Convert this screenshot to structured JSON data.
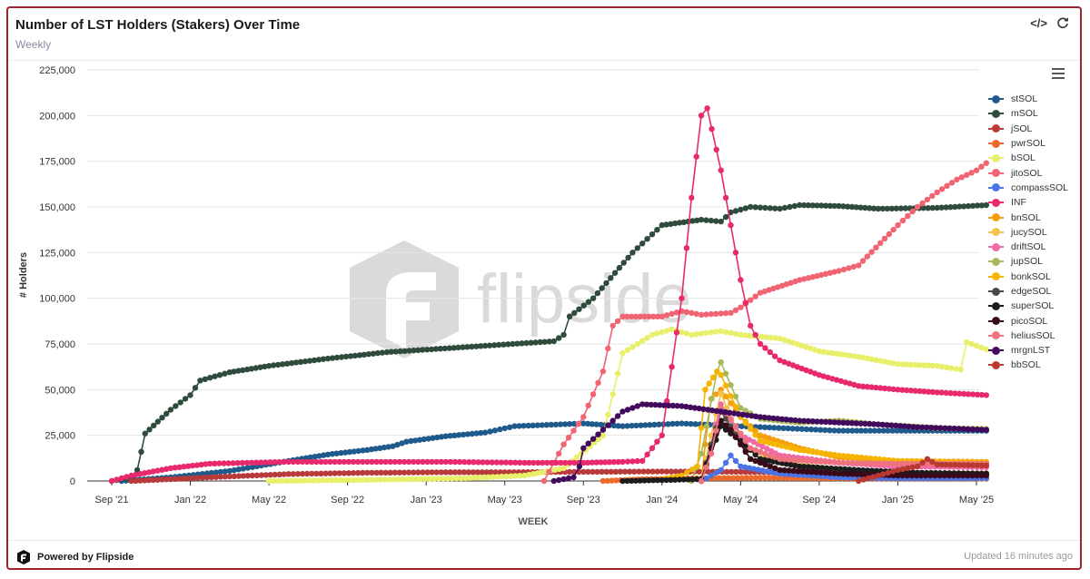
{
  "header": {
    "title": "Number of LST Holders (Stakers) Over Time",
    "subtitle": "Weekly",
    "embed_icon": "</>",
    "refresh_icon": "refresh-icon"
  },
  "footer": {
    "powered_by": "Powered by Flipside",
    "updated": "Updated 16 minutes ago"
  },
  "watermark_text": "flipside",
  "chart_data": {
    "type": "line",
    "xlabel": "WEEK",
    "ylabel": "# Holders",
    "ylim": [
      0,
      225000
    ],
    "x_ticks": [
      "Sep '21",
      "Jan '22",
      "May '22",
      "Sep '22",
      "Jan '23",
      "May '23",
      "Sep '23",
      "Jan '24",
      "May '24",
      "Sep '24",
      "Jan '25",
      "May '25"
    ],
    "y_ticks": [
      "0",
      "25,000",
      "50,000",
      "75,000",
      "100,000",
      "125,000",
      "150,000",
      "175,000",
      "200,000",
      "225,000"
    ],
    "grid": "horizontal",
    "legend_position": "right",
    "series": [
      {
        "name": "stSOL",
        "color": "#1f5a8c",
        "points": [
          [
            0.5,
            0
          ],
          [
            3,
            2000
          ],
          [
            6,
            5500
          ],
          [
            9,
            11000
          ],
          [
            11,
            14500
          ],
          [
            13,
            17000
          ],
          [
            14.3,
            19000
          ],
          [
            15,
            21500
          ],
          [
            17,
            24500
          ],
          [
            19,
            26500
          ],
          [
            20.5,
            30000
          ],
          [
            24,
            31500
          ],
          [
            26,
            30000
          ],
          [
            29,
            31500
          ],
          [
            33,
            29500
          ],
          [
            37,
            27500
          ],
          [
            42,
            27500
          ],
          [
            44.5,
            27500
          ]
        ]
      },
      {
        "name": "mSOL",
        "color": "#2f4b3c",
        "points": [
          [
            0,
            0
          ],
          [
            1,
            2000
          ],
          [
            1.3,
            6000
          ],
          [
            1.7,
            26000
          ],
          [
            3,
            39000
          ],
          [
            4,
            47000
          ],
          [
            4.5,
            55000
          ],
          [
            6,
            59500
          ],
          [
            8,
            63000
          ],
          [
            11,
            67000
          ],
          [
            14,
            70500
          ],
          [
            19,
            74000
          ],
          [
            22.5,
            76500
          ],
          [
            23,
            80000
          ],
          [
            23.3,
            90000
          ],
          [
            24.5,
            100000
          ],
          [
            26.5,
            125000
          ],
          [
            28,
            140000
          ],
          [
            30,
            143000
          ],
          [
            31,
            142000
          ],
          [
            31.5,
            147000
          ],
          [
            32.5,
            150000
          ],
          [
            34,
            149000
          ],
          [
            35,
            151000
          ],
          [
            37,
            150500
          ],
          [
            39,
            149000
          ],
          [
            42,
            149500
          ],
          [
            44.5,
            151000
          ]
        ]
      },
      {
        "name": "jSOL",
        "color": "#b83a3a",
        "points": [
          [
            1,
            0
          ],
          [
            3,
            1000
          ],
          [
            6,
            2500
          ],
          [
            9,
            3800
          ],
          [
            13,
            4500
          ],
          [
            17,
            4800
          ],
          [
            20,
            4800
          ],
          [
            24,
            5000
          ],
          [
            28,
            5200
          ],
          [
            32,
            5000
          ],
          [
            36,
            4600
          ],
          [
            40,
            4400
          ],
          [
            44.5,
            4200
          ]
        ]
      },
      {
        "name": "pwrSOL",
        "color": "#ee6a2b",
        "points": [
          [
            25,
            0
          ],
          [
            27,
            1000
          ],
          [
            30,
            1500
          ],
          [
            33,
            1800
          ],
          [
            36,
            1500
          ],
          [
            40,
            1300
          ],
          [
            44.5,
            1200
          ]
        ]
      },
      {
        "name": "bSOL",
        "color": "#e8ef6a",
        "points": [
          [
            8,
            0
          ],
          [
            13,
            600
          ],
          [
            18,
            1500
          ],
          [
            21,
            3000
          ],
          [
            23,
            7000
          ],
          [
            25,
            25000
          ],
          [
            26,
            70000
          ],
          [
            27.5,
            80000
          ],
          [
            28.5,
            83000
          ],
          [
            29.5,
            80000
          ],
          [
            31,
            82000
          ],
          [
            32,
            80000
          ],
          [
            34,
            78000
          ],
          [
            36,
            71000
          ],
          [
            38,
            68000
          ],
          [
            40,
            64000
          ],
          [
            42,
            63000
          ],
          [
            43.2,
            61000
          ],
          [
            43.5,
            76000
          ],
          [
            44.5,
            72000
          ]
        ]
      },
      {
        "name": "jitoSOL",
        "color": "#f06473",
        "points": [
          [
            22,
            0
          ],
          [
            23,
            20000
          ],
          [
            24,
            35000
          ],
          [
            25,
            60000
          ],
          [
            25.5,
            85000
          ],
          [
            26,
            90000
          ],
          [
            28,
            90000
          ],
          [
            29,
            93000
          ],
          [
            30,
            91000
          ],
          [
            31.5,
            92000
          ],
          [
            32,
            95000
          ],
          [
            33,
            103000
          ],
          [
            35,
            110000
          ],
          [
            37,
            115000
          ],
          [
            38,
            118000
          ],
          [
            40,
            140000
          ],
          [
            41,
            150000
          ],
          [
            42,
            158000
          ],
          [
            43,
            165000
          ],
          [
            44,
            170000
          ],
          [
            44.5,
            174000
          ]
        ]
      },
      {
        "name": "compassSOL",
        "color": "#4a73e6",
        "points": [
          [
            30,
            0
          ],
          [
            31,
            6000
          ],
          [
            31.5,
            14000
          ],
          [
            32,
            8000
          ],
          [
            34,
            4000
          ],
          [
            37,
            2000
          ],
          [
            40,
            1500
          ],
          [
            44.5,
            1500
          ]
        ]
      },
      {
        "name": "INF",
        "color": "#e8296d",
        "points": [
          [
            0,
            0
          ],
          [
            1,
            3000
          ],
          [
            3,
            7000
          ],
          [
            5,
            9500
          ],
          [
            9,
            10500
          ],
          [
            13,
            10500
          ],
          [
            17,
            10500
          ],
          [
            21,
            10000
          ],
          [
            24,
            10000
          ],
          [
            26,
            10500
          ],
          [
            27,
            11000
          ],
          [
            28,
            25000
          ],
          [
            29,
            100000
          ],
          [
            29.5,
            155000
          ],
          [
            30,
            200000
          ],
          [
            30.3,
            204000
          ],
          [
            31,
            170000
          ],
          [
            31.5,
            140000
          ],
          [
            32,
            110000
          ],
          [
            32.5,
            85000
          ],
          [
            33,
            75000
          ],
          [
            34,
            66000
          ],
          [
            36,
            58000
          ],
          [
            38,
            52000
          ],
          [
            40,
            50000
          ],
          [
            42,
            48500
          ],
          [
            44.5,
            47000
          ]
        ]
      },
      {
        "name": "bnSOL",
        "color": "#f59d0a",
        "points": [
          [
            30,
            0
          ],
          [
            30.2,
            20000
          ],
          [
            30.5,
            45000
          ],
          [
            31,
            50000
          ],
          [
            32,
            35000
          ],
          [
            33,
            25000
          ],
          [
            35,
            18000
          ],
          [
            37,
            13000
          ],
          [
            40,
            11000
          ],
          [
            44.5,
            10500
          ]
        ]
      },
      {
        "name": "jucySOL",
        "color": "#f4c24a",
        "points": [
          [
            30,
            0
          ],
          [
            30.5,
            25000
          ],
          [
            31,
            48000
          ],
          [
            31.3,
            40000
          ],
          [
            32,
            20000
          ],
          [
            34,
            10000
          ],
          [
            37,
            6000
          ],
          [
            40,
            4500
          ],
          [
            44.5,
            4000
          ]
        ]
      },
      {
        "name": "driftSOL",
        "color": "#ef6aa7",
        "points": [
          [
            30,
            0
          ],
          [
            30.5,
            20000
          ],
          [
            31,
            42000
          ],
          [
            32,
            25000
          ],
          [
            34,
            14000
          ],
          [
            37,
            10000
          ],
          [
            40,
            8000
          ],
          [
            44.5,
            7500
          ]
        ]
      },
      {
        "name": "jupSOL",
        "color": "#a8b95b",
        "points": [
          [
            29.5,
            0
          ],
          [
            30,
            15000
          ],
          [
            30.8,
            60000
          ],
          [
            31,
            65000
          ],
          [
            32,
            40000
          ],
          [
            33,
            34000
          ],
          [
            35,
            32000
          ],
          [
            37,
            33000
          ],
          [
            39,
            31000
          ],
          [
            42,
            29000
          ],
          [
            44.5,
            28500
          ]
        ]
      },
      {
        "name": "bonkSOL",
        "color": "#f5b400",
        "points": [
          [
            28,
            1000
          ],
          [
            29,
            3000
          ],
          [
            29.8,
            8000
          ],
          [
            30.2,
            50000
          ],
          [
            30.8,
            60000
          ],
          [
            31,
            58000
          ],
          [
            32,
            35000
          ],
          [
            33,
            22000
          ],
          [
            35,
            17000
          ],
          [
            37,
            14000
          ],
          [
            40,
            11000
          ],
          [
            44.5,
            10000
          ]
        ]
      },
      {
        "name": "edgeSOL",
        "color": "#474a47",
        "points": [
          [
            30,
            0
          ],
          [
            30.5,
            20000
          ],
          [
            31,
            38000
          ],
          [
            31.5,
            30000
          ],
          [
            32.5,
            12000
          ],
          [
            34,
            6000
          ],
          [
            37,
            4000
          ],
          [
            40,
            3500
          ],
          [
            44.5,
            3500
          ]
        ]
      },
      {
        "name": "superSOL",
        "color": "#1c1c1c",
        "points": [
          [
            26,
            0
          ],
          [
            28,
            500
          ],
          [
            30,
            1000
          ],
          [
            30.5,
            15000
          ],
          [
            31,
            30000
          ],
          [
            32,
            22000
          ],
          [
            33,
            12000
          ],
          [
            35,
            8000
          ],
          [
            38,
            6000
          ],
          [
            41,
            4500
          ],
          [
            44.5,
            4000
          ]
        ]
      },
      {
        "name": "picoSOL",
        "color": "#3a0a1a",
        "points": [
          [
            30,
            0
          ],
          [
            30.5,
            18000
          ],
          [
            31,
            33000
          ],
          [
            31.5,
            28000
          ],
          [
            32.5,
            12000
          ],
          [
            34,
            6000
          ],
          [
            37,
            4000
          ],
          [
            40,
            3000
          ],
          [
            44.5,
            3000
          ]
        ]
      },
      {
        "name": "heliusSOL",
        "color": "#ee7280",
        "points": [
          [
            30,
            0
          ],
          [
            30.5,
            15000
          ],
          [
            31,
            40000
          ],
          [
            31.5,
            34000
          ],
          [
            32.5,
            18000
          ],
          [
            34,
            12000
          ],
          [
            37,
            10000
          ],
          [
            40,
            9500
          ],
          [
            44.5,
            9500
          ]
        ]
      },
      {
        "name": "mrgnLST",
        "color": "#420a5c",
        "points": [
          [
            22.5,
            0
          ],
          [
            23.5,
            2000
          ],
          [
            23.8,
            8000
          ],
          [
            24,
            18000
          ],
          [
            25,
            28000
          ],
          [
            26,
            38000
          ],
          [
            27,
            42000
          ],
          [
            29,
            41000
          ],
          [
            31,
            38000
          ],
          [
            33,
            35000
          ],
          [
            35,
            33000
          ],
          [
            37,
            32000
          ],
          [
            39,
            31000
          ],
          [
            41,
            29500
          ],
          [
            44.5,
            28000
          ]
        ]
      },
      {
        "name": "bbSOL",
        "color": "#b8392f",
        "points": [
          [
            38,
            0
          ],
          [
            39,
            3000
          ],
          [
            40,
            6000
          ],
          [
            41,
            8000
          ],
          [
            41.5,
            12000
          ],
          [
            42,
            9000
          ],
          [
            44.5,
            8500
          ]
        ]
      }
    ]
  }
}
